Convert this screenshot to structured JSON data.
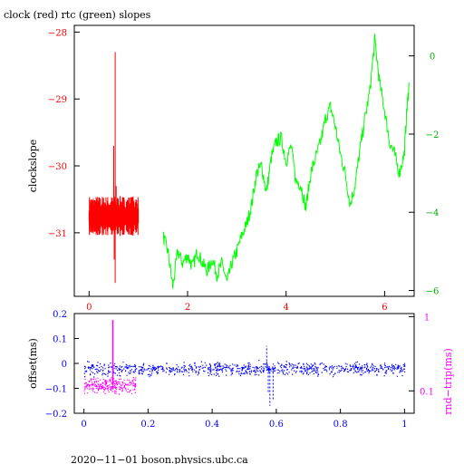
{
  "chart_data": [
    {
      "type": "line",
      "title": "clock (red) rtc (green) slopes",
      "ylabel": "clockslope",
      "xlim": [
        -0.3,
        6.6
      ],
      "ylim": [
        -31.95,
        -27.9
      ],
      "x_ticks": [
        {
          "v": 0,
          "label": "0"
        },
        {
          "v": 2,
          "label": "2"
        },
        {
          "v": 4,
          "label": "4"
        },
        {
          "v": 6,
          "label": "6"
        }
      ],
      "y_ticks": [
        {
          "v": -28,
          "label": "−28"
        },
        {
          "v": -29,
          "label": "−29"
        },
        {
          "v": -30,
          "label": "−30"
        },
        {
          "v": -31,
          "label": "−31"
        }
      ],
      "y2lim": [
        -6.15,
        0.78
      ],
      "y2_ticks": [
        {
          "v": 0,
          "label": "0"
        },
        {
          "v": -2,
          "label": "−2"
        },
        {
          "v": -4,
          "label": "−4"
        },
        {
          "v": -6,
          "label": "−6"
        }
      ],
      "series": [
        {
          "color": "#ff0000",
          "axis": "left",
          "x_range": [
            0,
            1.0
          ],
          "baseline": -30.75,
          "spikes": [
            {
              "x": 0.53,
              "y": -28.3
            },
            {
              "x": 0.53,
              "y": -31.75
            },
            {
              "x": 0.5,
              "y": -29.7
            },
            {
              "x": 0.55,
              "y": -30.3
            },
            {
              "x": 0.51,
              "y": -31.4
            }
          ]
        },
        {
          "color": "#00ff00",
          "axis": "right",
          "points": [
            [
              1.5,
              -4.6
            ],
            [
              1.6,
              -5.0
            ],
            [
              1.7,
              -5.9
            ],
            [
              1.8,
              -5.0
            ],
            [
              1.9,
              -5.3
            ],
            [
              2.0,
              -5.1
            ],
            [
              2.1,
              -5.4
            ],
            [
              2.2,
              -5.0
            ],
            [
              2.3,
              -5.3
            ],
            [
              2.4,
              -5.5
            ],
            [
              2.5,
              -5.2
            ],
            [
              2.6,
              -5.6
            ],
            [
              2.7,
              -5.3
            ],
            [
              2.8,
              -5.8
            ],
            [
              2.9,
              -5.3
            ],
            [
              3.0,
              -5.0
            ],
            [
              3.1,
              -4.6
            ],
            [
              3.2,
              -4.3
            ],
            [
              3.3,
              -3.8
            ],
            [
              3.4,
              -3.0
            ],
            [
              3.5,
              -2.8
            ],
            [
              3.6,
              -3.5
            ],
            [
              3.7,
              -2.6
            ],
            [
              3.8,
              -2.2
            ],
            [
              3.9,
              -2.1
            ],
            [
              4.0,
              -2.7
            ],
            [
              4.1,
              -2.3
            ],
            [
              4.2,
              -3.2
            ],
            [
              4.3,
              -3.3
            ],
            [
              4.4,
              -3.9
            ],
            [
              4.5,
              -3.0
            ],
            [
              4.6,
              -2.6
            ],
            [
              4.7,
              -2.2
            ],
            [
              4.8,
              -1.6
            ],
            [
              4.9,
              -1.3
            ],
            [
              5.0,
              -1.8
            ],
            [
              5.1,
              -2.5
            ],
            [
              5.2,
              -3.0
            ],
            [
              5.3,
              -3.8
            ],
            [
              5.4,
              -3.3
            ],
            [
              5.5,
              -2.4
            ],
            [
              5.6,
              -1.6
            ],
            [
              5.7,
              -0.9
            ],
            [
              5.8,
              0.4
            ],
            [
              5.9,
              -0.7
            ],
            [
              6.0,
              -1.4
            ],
            [
              6.1,
              -2.2
            ],
            [
              6.2,
              -2.5
            ],
            [
              6.3,
              -3.0
            ],
            [
              6.4,
              -2.5
            ],
            [
              6.45,
              -1.4
            ],
            [
              6.5,
              -0.7
            ]
          ]
        }
      ]
    },
    {
      "type": "scatter",
      "ylabel": "offset(ms)",
      "y2label": "rnd−trip(ms)",
      "xlim": [
        -0.03,
        1.03
      ],
      "ylim": [
        -0.2,
        0.2
      ],
      "x_ticks": [
        {
          "v": 0,
          "label": "0"
        },
        {
          "v": 0.2,
          "label": "0.2"
        },
        {
          "v": 0.4,
          "label": "0.4"
        },
        {
          "v": 0.6,
          "label": "0.6"
        },
        {
          "v": 0.8,
          "label": "0.8"
        },
        {
          "v": 1,
          "label": "1"
        }
      ],
      "y_ticks": [
        {
          "v": 0.2,
          "label": "0.2"
        },
        {
          "v": 0.1,
          "label": "0.1"
        },
        {
          "v": 0,
          "label": "0"
        },
        {
          "v": -0.1,
          "label": "−0.1"
        },
        {
          "v": -0.2,
          "label": "−0.2"
        }
      ],
      "y2lim": [
        0.05,
        1.1
      ],
      "y2_log": true,
      "y2_ticks": [
        {
          "v": 1,
          "label": "1"
        },
        {
          "v": 0.1,
          "label": "0.1"
        }
      ],
      "series": [
        {
          "color": "#0000ff",
          "axis": "left",
          "x_range": [
            0,
            1.0
          ],
          "center": -0.02,
          "spread": 0.025,
          "outliers": [
            {
              "x": 0.575,
              "y": -0.12
            },
            {
              "x": 0.58,
              "y": -0.17
            },
            {
              "x": 0.59,
              "y": -0.15
            },
            {
              "x": 0.57,
              "y": 0.07
            }
          ]
        },
        {
          "color": "#ff00ff",
          "axis": "right",
          "x_range": [
            0,
            0.16
          ],
          "center": 0.12,
          "spike": {
            "x": 0.09,
            "y": 0.9
          }
        }
      ]
    }
  ],
  "footer": "2020−11−01 boson.physics.ubc.ca"
}
